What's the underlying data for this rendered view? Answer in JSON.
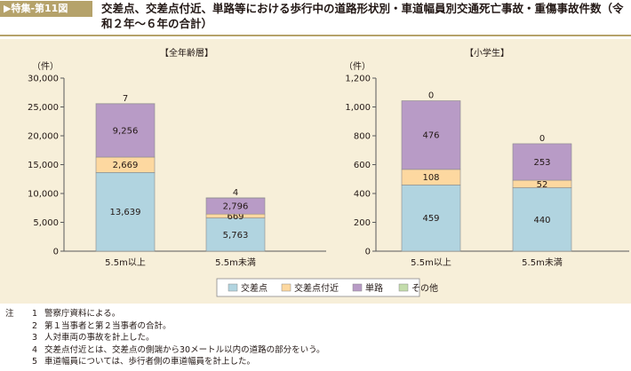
{
  "figure": {
    "label": "▶特集-第11図",
    "title": "交差点、交差点付近、単路等における歩行中の道路形状別・車道幅員別交通死亡事故・重傷事故件数（令和２年～６年の合計）"
  },
  "legend": [
    {
      "name": "交差点",
      "color": "#b1d4e0"
    },
    {
      "name": "交差点付近",
      "color": "#fdd8a0"
    },
    {
      "name": "単路",
      "color": "#b89bc6"
    },
    {
      "name": "その他",
      "color": "#c3dcab"
    }
  ],
  "chart_data": [
    {
      "type": "bar",
      "stacked": true,
      "title": "【全年齢層】",
      "unit": "（件）",
      "categories": [
        "5.5m以上",
        "5.5m未満"
      ],
      "ylim": [
        0,
        30000
      ],
      "ticks": [
        "0",
        "5,000",
        "10,000",
        "15,000",
        "20,000",
        "25,000",
        "30,000"
      ],
      "series": [
        {
          "name": "交差点",
          "values": [
            13639,
            5763
          ],
          "labels": [
            "13,639",
            "5,763"
          ]
        },
        {
          "name": "交差点付近",
          "values": [
            2669,
            669
          ],
          "labels": [
            "2,669",
            "669"
          ]
        },
        {
          "name": "単路",
          "values": [
            9256,
            2796
          ],
          "labels": [
            "9,256",
            "2,796"
          ]
        },
        {
          "name": "その他",
          "values": [
            7,
            4
          ],
          "labels": [
            "7",
            "4"
          ]
        }
      ],
      "grid": false
    },
    {
      "type": "bar",
      "stacked": true,
      "title": "【小学生】",
      "unit": "（件）",
      "categories": [
        "5.5m以上",
        "5.5m未満"
      ],
      "ylim": [
        0,
        1200
      ],
      "ticks": [
        "0",
        "200",
        "400",
        "600",
        "800",
        "1,000",
        "1,200"
      ],
      "series": [
        {
          "name": "交差点",
          "values": [
            459,
            440
          ],
          "labels": [
            "459",
            "440"
          ]
        },
        {
          "name": "交差点付近",
          "values": [
            108,
            52
          ],
          "labels": [
            "108",
            "52"
          ]
        },
        {
          "name": "単路",
          "values": [
            476,
            253
          ],
          "labels": [
            "476",
            "253"
          ]
        },
        {
          "name": "その他",
          "values": [
            0,
            0
          ],
          "labels": [
            "0",
            "0"
          ]
        }
      ],
      "grid": false
    }
  ],
  "notes": {
    "head": "注",
    "items": [
      {
        "num": "1",
        "text": "警察庁資料による。"
      },
      {
        "num": "2",
        "text": "第１当事者と第２当事者の合計。"
      },
      {
        "num": "3",
        "text": "人対車両の事故を計上した。"
      },
      {
        "num": "4",
        "text": "交差点付近とは、交差点の側端から30メートル以内の道路の部分をいう。"
      },
      {
        "num": "5",
        "text": "車道幅員については、歩行者側の車道幅員を計上した。"
      }
    ]
  }
}
